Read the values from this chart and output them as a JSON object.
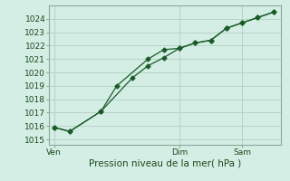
{
  "xlabel": "Pression niveau de la mer( hPa )",
  "bg_color": "#d4ede5",
  "grid_color": "#b8d4c8",
  "line_color": "#1a5c28",
  "yticks": [
    1015,
    1016,
    1017,
    1018,
    1019,
    1020,
    1021,
    1022,
    1023,
    1024
  ],
  "ylim": [
    1014.6,
    1025.0
  ],
  "xtick_labels": [
    "Ven",
    "Dim",
    "Sam"
  ],
  "xtick_positions": [
    0,
    8,
    12
  ],
  "xlim": [
    -0.3,
    14.5
  ],
  "line1_x": [
    0,
    1,
    3,
    4,
    6,
    7,
    8,
    9,
    10,
    11,
    12,
    13,
    14
  ],
  "line1_y": [
    1015.9,
    1015.6,
    1017.1,
    1019.0,
    1021.0,
    1021.7,
    1021.8,
    1022.2,
    1022.4,
    1023.3,
    1023.7,
    1024.1,
    1024.5
  ],
  "line2_x": [
    0,
    1,
    3,
    5,
    6,
    7,
    8,
    9,
    10,
    11,
    12,
    13,
    14
  ],
  "line2_y": [
    1015.9,
    1015.6,
    1017.1,
    1019.6,
    1020.5,
    1021.1,
    1021.8,
    1022.2,
    1022.4,
    1023.3,
    1023.7,
    1024.1,
    1024.5
  ],
  "vline_positions": [
    0,
    8,
    12
  ],
  "xlabel_fontsize": 7.5,
  "tick_fontsize": 6.5
}
